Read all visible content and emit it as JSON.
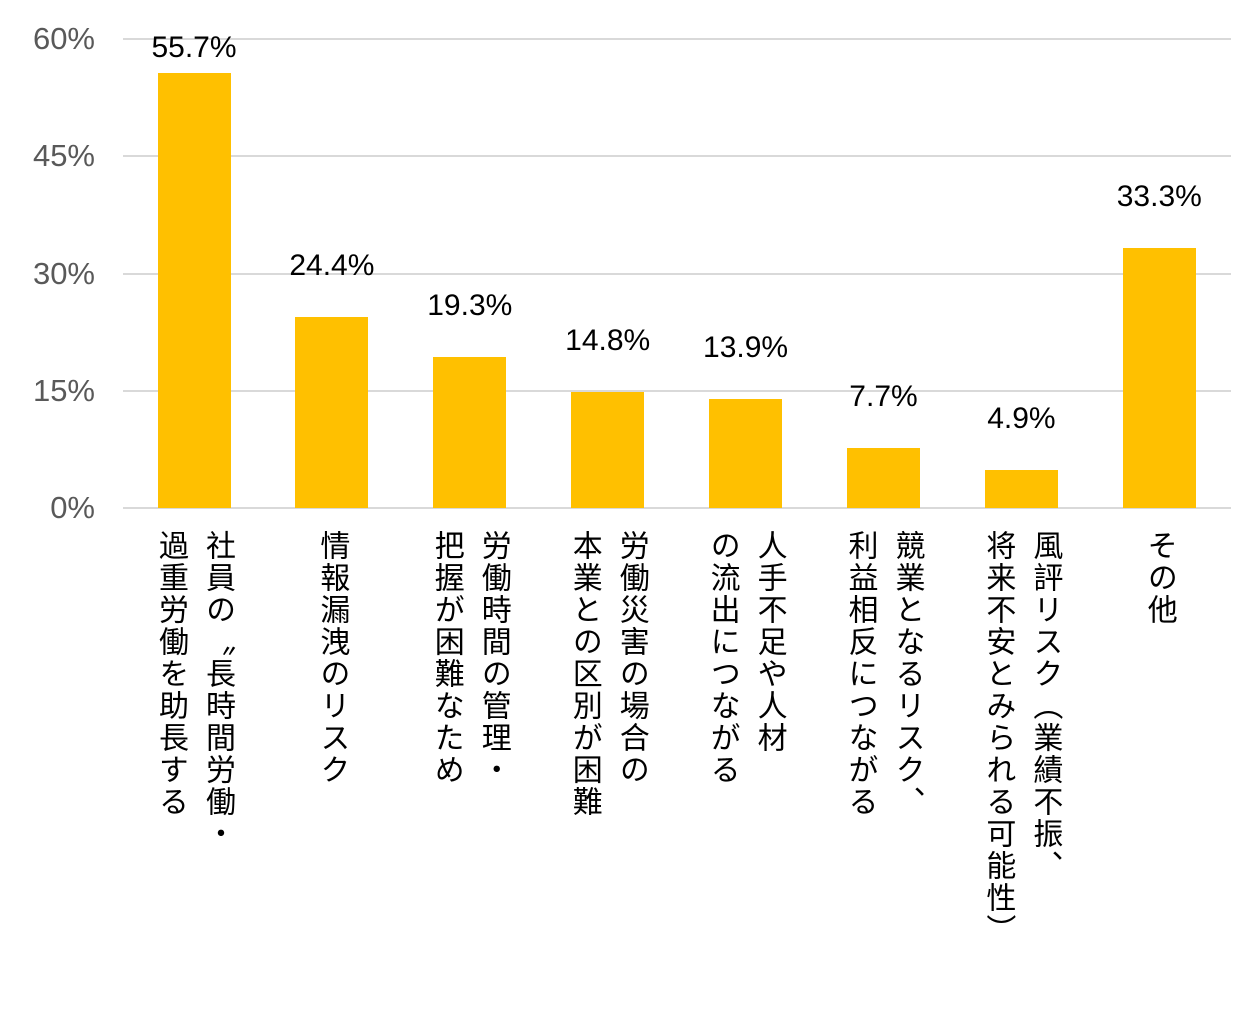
{
  "chart_data": {
    "type": "bar",
    "title": "",
    "xlabel": "",
    "ylabel": "",
    "ylim": [
      0,
      60
    ],
    "grid": true,
    "legend": "none",
    "bar_color": "#FFC000",
    "gridline_color": "#D9D9D9",
    "axis_label_color": "#595959",
    "data_label_color": "#000000",
    "yticks": [
      "0%",
      "15%",
      "30%",
      "45%",
      "60%"
    ],
    "ytick_values": [
      0,
      15,
      30,
      45,
      60
    ],
    "categories": [
      "社員の〝長時間労働・過重労働を助長する",
      "情報漏洩のリスク",
      "労働時間の管理・把握が困難なため",
      "労働災害の場合の本業との区別が困難",
      "人手不足や人材の流出につながる",
      "競業となるリスク、利益相反につながる",
      "風評リスク（業績不振、将来不安とみられる可能性）",
      "その他"
    ],
    "category_columns": [
      [
        "社員の〝長時間労働・",
        "過重労働を助長する"
      ],
      [
        "情報漏洩のリスク"
      ],
      [
        "労働時間の管理・",
        "把握が困難なため"
      ],
      [
        "労働災害の場合の",
        "本業との区別が困難"
      ],
      [
        "人手不足や人材",
        "の流出につながる"
      ],
      [
        "競業となるリスク、",
        "利益相反につながる"
      ],
      [
        "風評リスク（業績不振、",
        "将来不安とみられる可能性）"
      ],
      [
        "その他"
      ]
    ],
    "values": [
      55.7,
      24.4,
      19.3,
      14.8,
      13.9,
      7.7,
      4.9,
      33.3
    ],
    "data_labels": [
      "55.7%",
      "24.4%",
      "19.3%",
      "14.8%",
      "13.9%",
      "7.7%",
      "4.9%",
      "33.3%"
    ]
  }
}
